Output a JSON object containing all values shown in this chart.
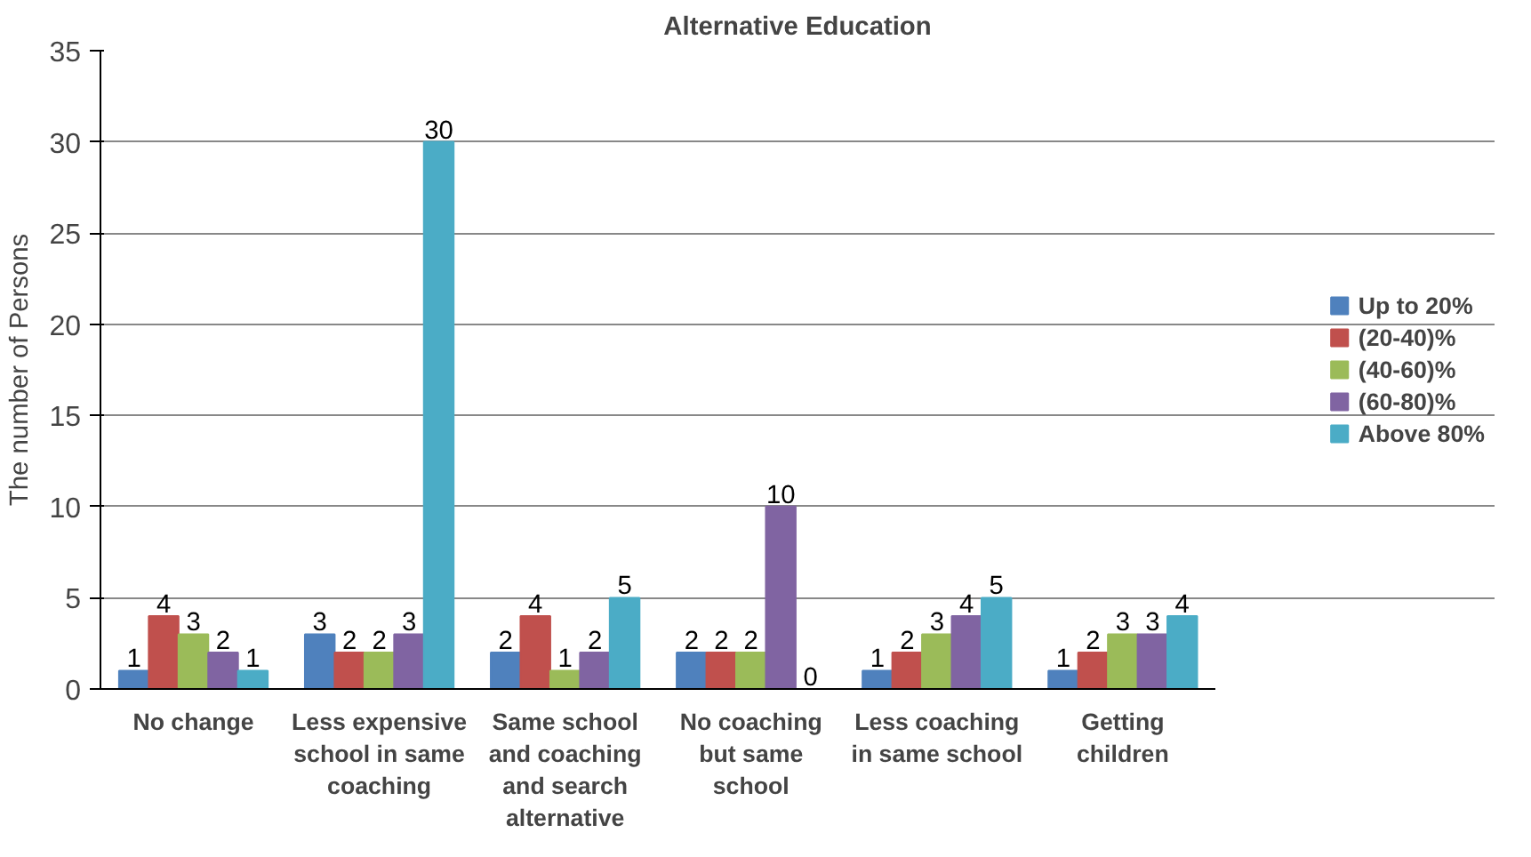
{
  "chart_data": {
    "type": "bar",
    "title": "Alternative Education",
    "ylabel": "The number of Persons",
    "categories": [
      "No change",
      "Less expensive school in same coaching",
      "Same school and coaching and search alternative",
      "No coaching but same school",
      "Less coaching in same school",
      "Getting children"
    ],
    "series": [
      {
        "name": "Up to 20%",
        "color": "#4f81bd",
        "values": [
          1,
          3,
          2,
          2,
          1,
          1
        ]
      },
      {
        "name": "(20-40)%",
        "color": "#c0504d",
        "values": [
          4,
          2,
          4,
          2,
          2,
          2
        ]
      },
      {
        "name": "(40-60)%",
        "color": "#9bbb59",
        "values": [
          3,
          2,
          1,
          2,
          3,
          3
        ]
      },
      {
        "name": "(60-80)%",
        "color": "#8064a2",
        "values": [
          2,
          3,
          2,
          10,
          4,
          3
        ]
      },
      {
        "name": "Above 80%",
        "color": "#4bacc6",
        "values": [
          1,
          30,
          5,
          0,
          5,
          4
        ]
      }
    ],
    "ylim": [
      0,
      35
    ],
    "yticks": [
      0,
      5,
      10,
      15,
      20,
      25,
      30,
      35
    ],
    "grid": "y",
    "legend": "right",
    "data_labels": true
  }
}
